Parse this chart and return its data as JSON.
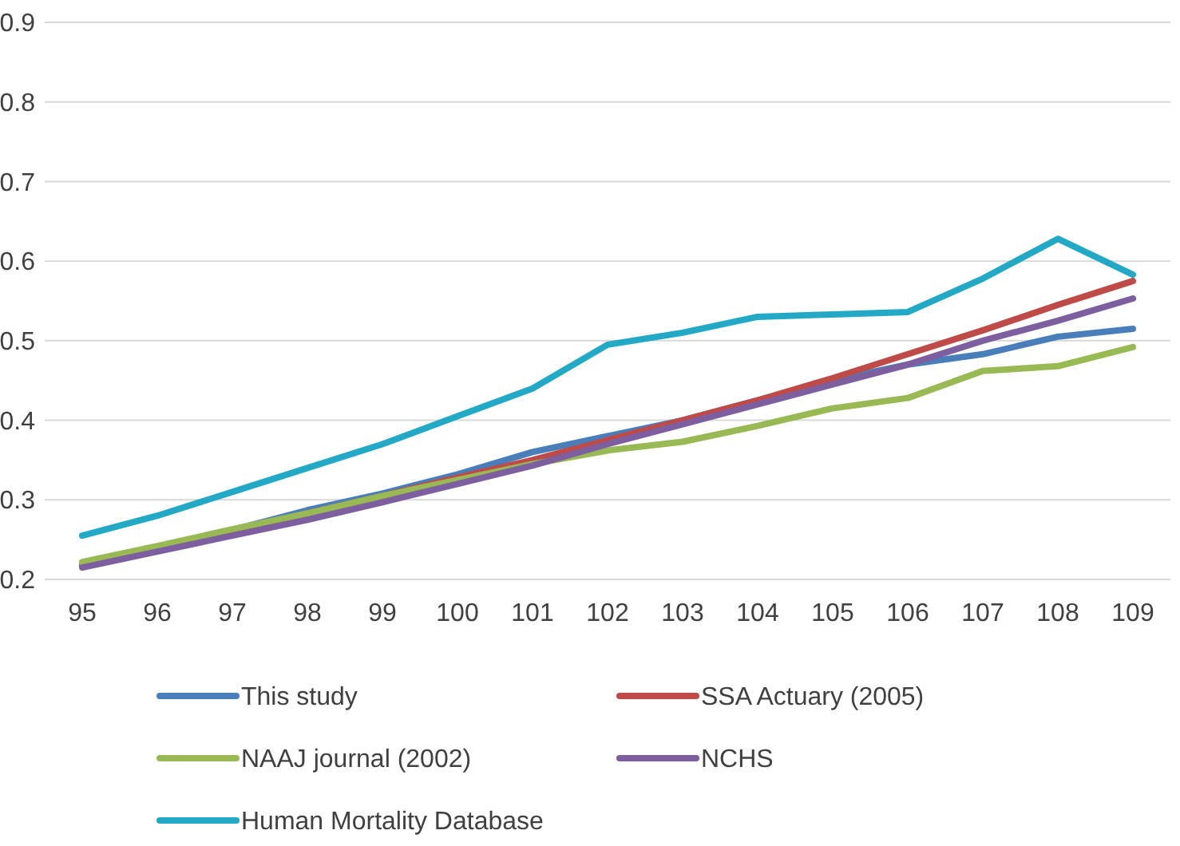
{
  "chart_data": {
    "type": "line",
    "categories": [
      "95",
      "96",
      "97",
      "98",
      "99",
      "100",
      "101",
      "102",
      "103",
      "104",
      "105",
      "106",
      "107",
      "108",
      "109"
    ],
    "ylim": [
      0.2,
      0.9
    ],
    "yticks": [
      0.2,
      0.3,
      0.4,
      0.5,
      0.6,
      0.7,
      0.8,
      0.9
    ],
    "grid": "y",
    "legend": "bottom",
    "marker": "none",
    "line_style": "solid",
    "series": [
      {
        "name": "This study",
        "color": "#4a7ebb",
        "values": [
          0.218,
          0.24,
          0.262,
          0.287,
          0.308,
          0.332,
          0.36,
          0.38,
          0.4,
          0.425,
          0.45,
          0.47,
          0.483,
          0.505,
          0.515
        ]
      },
      {
        "name": "SSA Actuary (2005)",
        "color": "#be4b48",
        "values": [
          0.217,
          0.238,
          0.26,
          0.283,
          0.305,
          0.328,
          0.35,
          0.375,
          0.4,
          0.425,
          0.453,
          0.483,
          0.513,
          0.545,
          0.575
        ]
      },
      {
        "name": "NAAJ journal (2002)",
        "color": "#98b954",
        "values": [
          0.222,
          0.242,
          0.263,
          0.283,
          0.305,
          0.325,
          0.345,
          0.362,
          0.373,
          0.393,
          0.415,
          0.428,
          0.462,
          0.468,
          0.492
        ]
      },
      {
        "name": "NCHS",
        "color": "#7d5fa0",
        "values": [
          0.215,
          0.235,
          0.255,
          0.275,
          0.297,
          0.32,
          0.343,
          0.37,
          0.395,
          0.42,
          0.445,
          0.47,
          0.5,
          0.525,
          0.553
        ]
      },
      {
        "name": "Human Mortality Database",
        "color": "#23a9c6",
        "values": [
          0.255,
          0.28,
          0.31,
          0.34,
          0.37,
          0.405,
          0.44,
          0.495,
          0.51,
          0.53,
          0.533,
          0.536,
          0.578,
          0.628,
          0.583
        ]
      }
    ]
  }
}
